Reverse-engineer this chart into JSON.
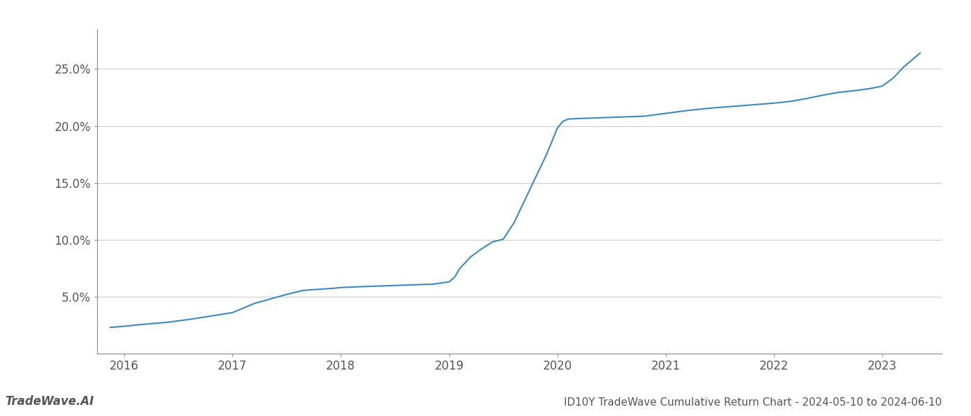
{
  "title": "ID10Y TradeWave Cumulative Return Chart - 2024-05-10 to 2024-06-10",
  "watermark": "TradeWave.AI",
  "line_color": "#3a8abf",
  "background_color": "#ffffff",
  "grid_color": "#cccccc",
  "x_values": [
    2015.87,
    2016.0,
    2016.15,
    2016.4,
    2016.6,
    2016.8,
    2017.0,
    2017.1,
    2017.2,
    2017.35,
    2017.5,
    2017.65,
    2017.8,
    2017.95,
    2018.0,
    2018.1,
    2018.25,
    2018.4,
    2018.55,
    2018.7,
    2018.85,
    2019.0,
    2019.05,
    2019.1,
    2019.2,
    2019.3,
    2019.4,
    2019.5,
    2019.6,
    2019.7,
    2019.8,
    2019.9,
    2020.0,
    2020.05,
    2020.1,
    2020.2,
    2020.35,
    2020.5,
    2020.65,
    2020.8,
    2021.0,
    2021.2,
    2021.4,
    2021.6,
    2021.8,
    2022.0,
    2022.15,
    2022.3,
    2022.45,
    2022.6,
    2022.75,
    2022.9,
    2023.0,
    2023.1,
    2023.2,
    2023.35
  ],
  "y_values": [
    2.3,
    2.4,
    2.55,
    2.75,
    3.0,
    3.3,
    3.6,
    4.0,
    4.4,
    4.8,
    5.2,
    5.55,
    5.65,
    5.75,
    5.8,
    5.85,
    5.9,
    5.95,
    6.0,
    6.05,
    6.1,
    6.3,
    6.7,
    7.5,
    8.5,
    9.2,
    9.8,
    10.05,
    11.5,
    13.5,
    15.5,
    17.5,
    19.8,
    20.4,
    20.6,
    20.65,
    20.7,
    20.75,
    20.8,
    20.85,
    21.1,
    21.35,
    21.55,
    21.7,
    21.85,
    22.0,
    22.15,
    22.4,
    22.7,
    22.95,
    23.1,
    23.3,
    23.5,
    24.2,
    25.2,
    26.4
  ],
  "xlim": [
    2015.75,
    2023.55
  ],
  "ylim": [
    0.0,
    28.5
  ],
  "yticks": [
    5.0,
    10.0,
    15.0,
    20.0,
    25.0
  ],
  "xticks": [
    2016,
    2017,
    2018,
    2019,
    2020,
    2021,
    2022,
    2023
  ],
  "line_width": 1.5,
  "title_fontsize": 11,
  "tick_fontsize": 12,
  "watermark_fontsize": 12
}
